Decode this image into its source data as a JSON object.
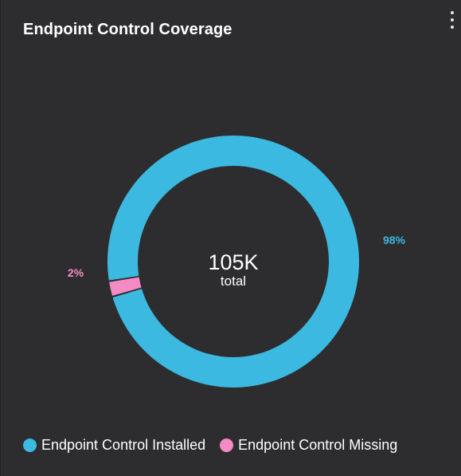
{
  "widget": {
    "title": "Endpoint Control Coverage",
    "menu_icon": "vertical-ellipsis-icon"
  },
  "colors": {
    "background": "#2d2d2f",
    "installed": "#3bb9e0",
    "missing": "#f48bc5",
    "text": "#ffffff"
  },
  "chart_data": {
    "type": "pie",
    "style": "donut",
    "center_value": "105K",
    "center_label": "total",
    "slices": [
      {
        "name": "Endpoint Control Installed",
        "percent": 98,
        "label": "98%",
        "color": "#3bb9e0"
      },
      {
        "name": "Endpoint Control Missing",
        "percent": 2,
        "label": "2%",
        "color": "#f48bc5"
      }
    ],
    "legend_position": "bottom-left"
  },
  "legend": {
    "items": [
      {
        "label": "Endpoint Control Installed",
        "color": "#3bb9e0"
      },
      {
        "label": "Endpoint Control Missing",
        "color": "#f48bc5"
      }
    ]
  }
}
